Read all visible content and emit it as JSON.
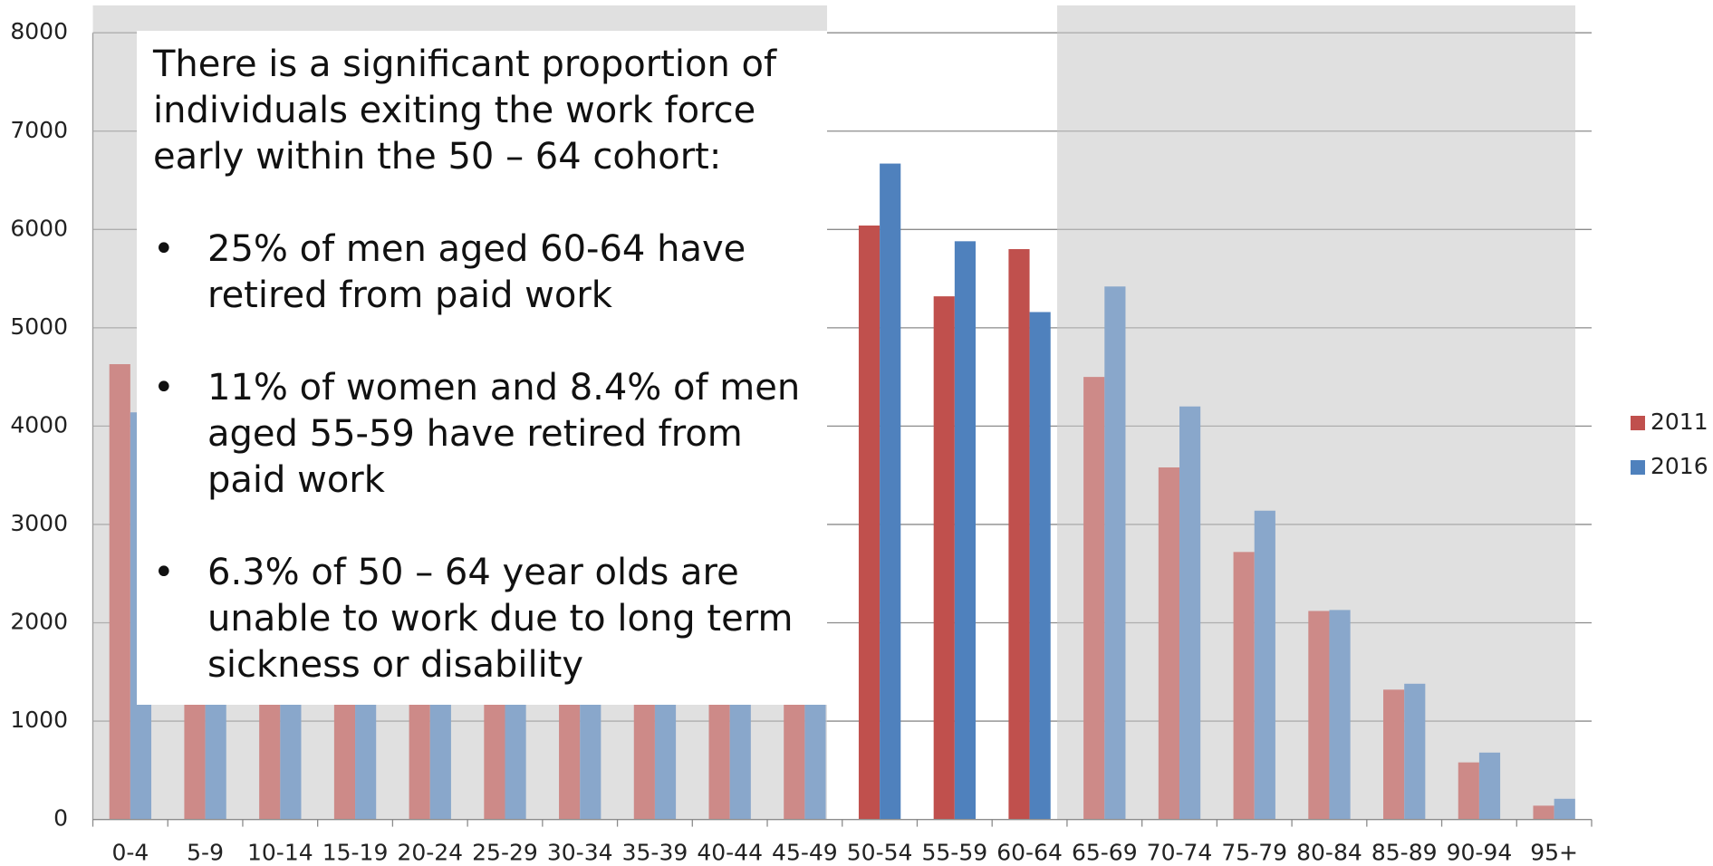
{
  "chart_data": {
    "type": "bar",
    "categories": [
      "0-4",
      "5-9",
      "10-14",
      "15-19",
      "20-24",
      "25-29",
      "30-34",
      "35-39",
      "40-44",
      "45-49",
      "50-54",
      "55-59",
      "60-64",
      "65-69",
      "70-74",
      "75-79",
      "80-84",
      "85-89",
      "90-94",
      "95+"
    ],
    "series": [
      {
        "name": "2011",
        "color": "#c0504d",
        "values": [
          4630,
          4700,
          4800,
          4900,
          4750,
          4600,
          4500,
          4700,
          5000,
          5600,
          6040,
          5320,
          5800,
          4500,
          3580,
          2720,
          2120,
          1320,
          580,
          140
        ]
      },
      {
        "name": "2016",
        "color": "#4f81bd",
        "values": [
          4140,
          4500,
          4650,
          4700,
          4800,
          4700,
          4600,
          4600,
          4800,
          5400,
          6670,
          5880,
          5160,
          5420,
          4200,
          3140,
          2130,
          1380,
          680,
          210
        ]
      }
    ],
    "ylim": [
      0,
      8000
    ],
    "yticks": [
      0,
      1000,
      2000,
      3000,
      4000,
      5000,
      6000,
      7000,
      8000
    ],
    "grid": true,
    "legend": "right"
  },
  "callout": {
    "intro": "There is a significant proportion of individuals exiting the work force early within the 50 – 64 cohort:",
    "bullets": [
      "25% of men aged 60-64 have retired from paid work",
      "11% of women and 8.4% of men aged 55-59 have retired from paid work",
      "6.3% of 50 – 64 year olds are unable to work due to long term sickness or disability"
    ]
  }
}
